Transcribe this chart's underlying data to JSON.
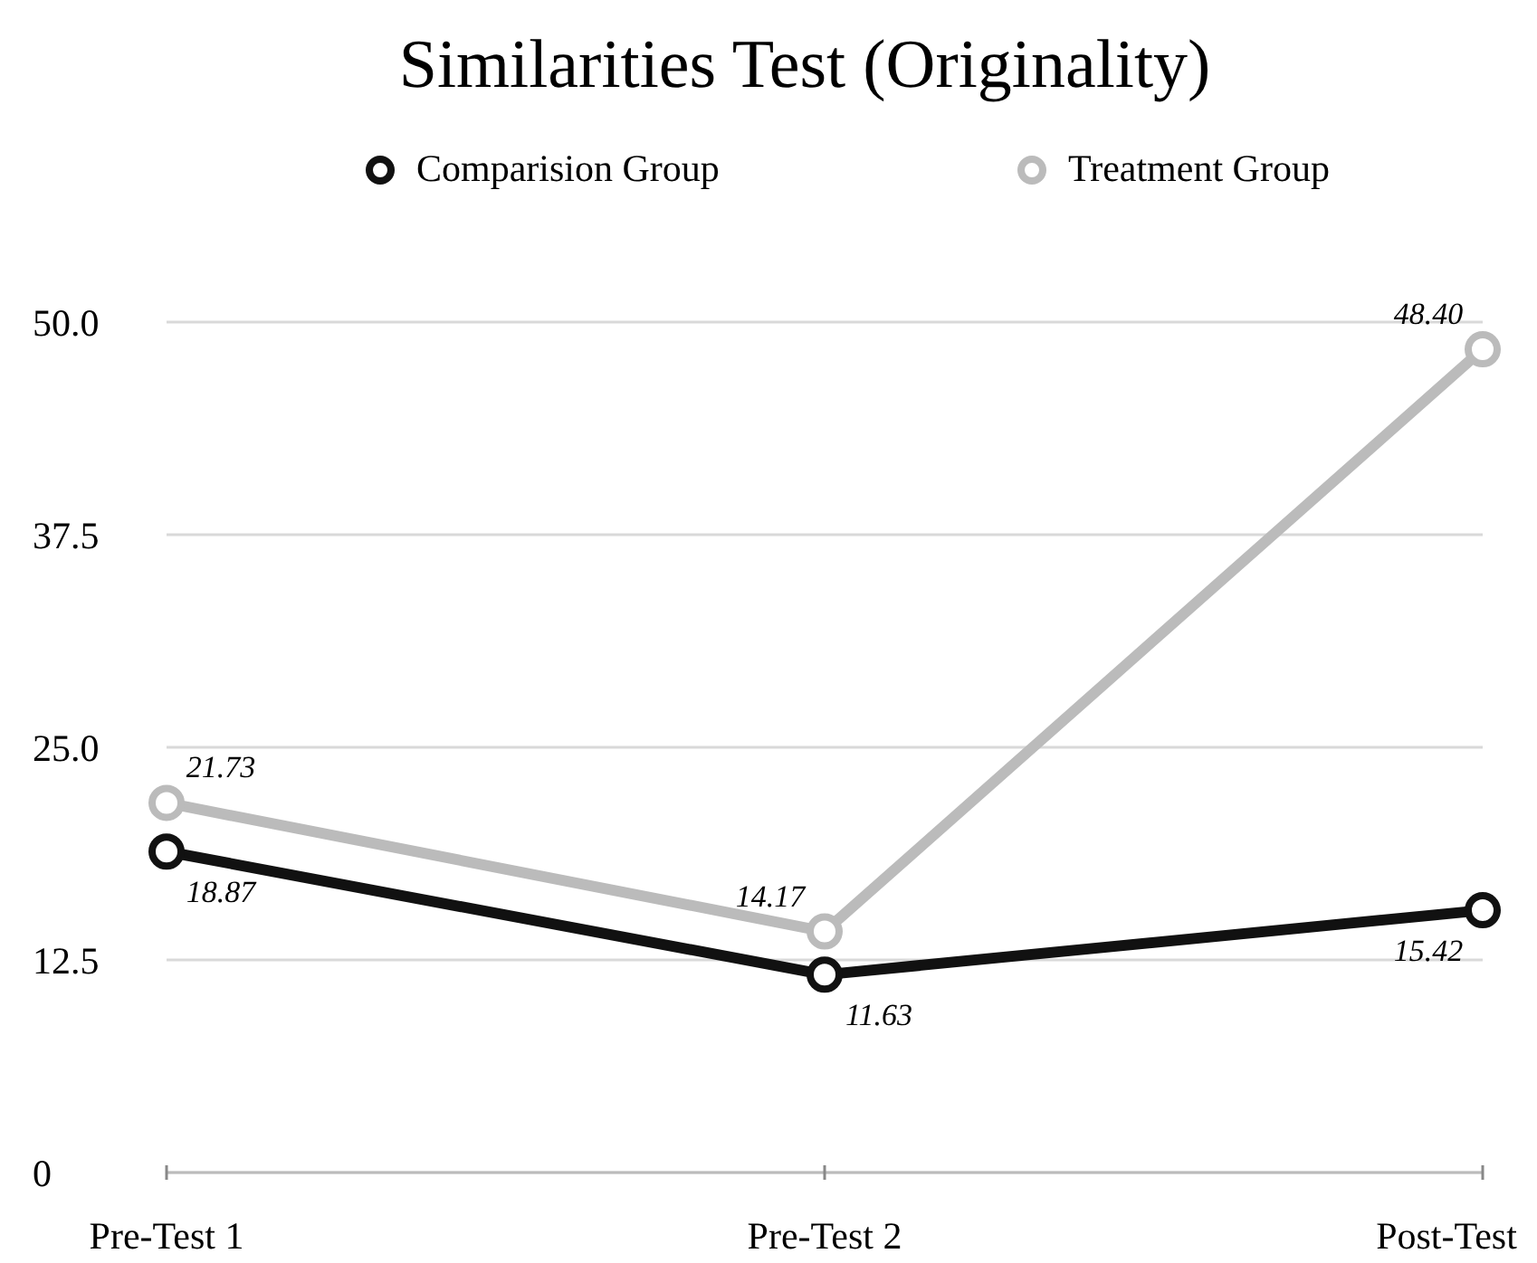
{
  "chart_data": {
    "type": "line",
    "title": "Similarities Test (Originality)",
    "categories": [
      "Pre-Test 1",
      "Pre-Test 2",
      "Post-Test"
    ],
    "series": [
      {
        "name": "Comparision Group",
        "color": "#111111",
        "values": [
          18.87,
          11.63,
          15.42
        ],
        "value_labels": [
          "18.87",
          "11.63",
          "15.42"
        ]
      },
      {
        "name": "Treatment Group",
        "color": "#bbbbbb",
        "values": [
          21.73,
          14.17,
          48.4
        ],
        "value_labels": [
          "21.73",
          "14.17",
          "48.40"
        ]
      }
    ],
    "ylim": [
      0,
      50
    ],
    "yticks": [
      0,
      12.5,
      {
        "value": 25,
        "label": "25.0"
      },
      37.5,
      {
        "value": 50,
        "label": "50.0"
      }
    ],
    "grid": "y",
    "legend": "top",
    "marker": "circle",
    "line_style": "solid"
  }
}
